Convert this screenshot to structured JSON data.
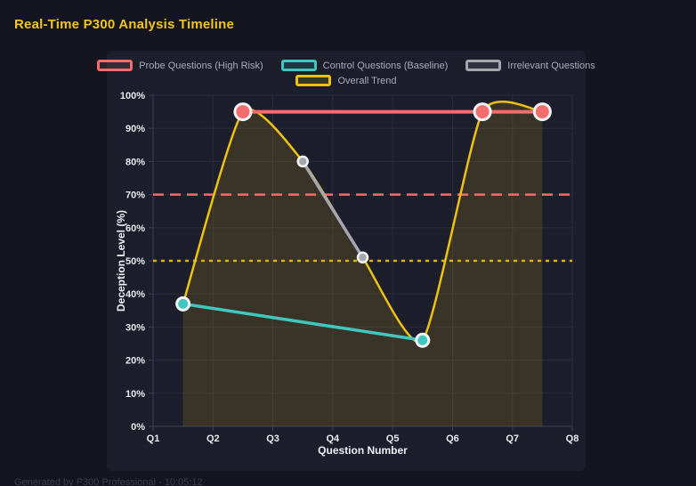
{
  "header": {
    "title": "Real-Time P300 Analysis Timeline",
    "title_color": "#f0c41c"
  },
  "footer": {
    "note": "Generated by P300 Professional - 10:05:12"
  },
  "colors": {
    "page_bg": "#14151e",
    "panel_bg": "#1d1e2c",
    "grid": "#2a2c3e",
    "axis": "#3d4056",
    "tick_text": "#e9eaef",
    "legend_text": "#a9abb8",
    "point_border": "#f4f5f7",
    "accent_yellow": "#f0c41c",
    "accent_red": "#f26d6d",
    "accent_teal": "#40c8c0",
    "accent_gray": "#a6a6b0"
  },
  "chart_data": {
    "type": "line",
    "title": "Real-Time P300 Analysis Timeline",
    "xlabel": "Question Number",
    "ylabel": "Deception Level (%)",
    "categories": [
      "Q1",
      "Q2",
      "Q3",
      "Q4",
      "Q5",
      "Q6",
      "Q7",
      "Q8"
    ],
    "x_range": [
      1,
      8
    ],
    "ylim": [
      0,
      100
    ],
    "ytick_values": [
      0,
      10,
      20,
      30,
      40,
      50,
      60,
      70,
      80,
      90,
      100
    ],
    "ytick_labels": [
      "0%",
      "10%",
      "20%",
      "30%",
      "40%",
      "50%",
      "60%",
      "70%",
      "80%",
      "90%",
      "100%"
    ],
    "grid": true,
    "legend_position": "top",
    "legend_rows": [
      [
        0,
        1,
        2
      ],
      [
        3
      ]
    ],
    "series": [
      {
        "name": "Probe Questions (High Risk)",
        "slug": "probe",
        "color": "#f26d6d",
        "curve": "linear",
        "x": [
          2.5,
          6.5,
          7.5
        ],
        "values": [
          95,
          95,
          95
        ],
        "line_width": 4,
        "point_radius": 9,
        "point_border": 3
      },
      {
        "name": "Control Questions (Baseline)",
        "slug": "control",
        "color": "#40c8c0",
        "curve": "linear",
        "x": [
          1.5,
          5.5
        ],
        "values": [
          37,
          26
        ],
        "line_width": 3.5,
        "point_radius": 7,
        "point_border": 3
      },
      {
        "name": "Irrelevant Questions",
        "slug": "irrelevant",
        "color": "#a6a6b0",
        "curve": "linear",
        "x": [
          3.5,
          4.5
        ],
        "values": [
          80,
          51
        ],
        "line_width": 3.5,
        "point_radius": 5.5,
        "point_border": 2.5
      },
      {
        "name": "Overall Trend",
        "slug": "trend",
        "color": "#edc211",
        "curve": "spline",
        "x": [
          1.5,
          2.5,
          3.5,
          4.5,
          5.5,
          6.5,
          7.5
        ],
        "values": [
          37,
          95,
          80,
          51,
          26,
          95,
          95
        ],
        "line_width": 2.5,
        "point_radius": 0,
        "point_border": 0,
        "fill": true,
        "fill_opacity": 0.14
      }
    ],
    "thresholds": [
      {
        "value": 70,
        "color": "#f26d6d",
        "dash": "12 7",
        "width": 2.5
      },
      {
        "value": 50,
        "color": "#dcb305",
        "dash": "4 5",
        "width": 2.5
      }
    ]
  }
}
